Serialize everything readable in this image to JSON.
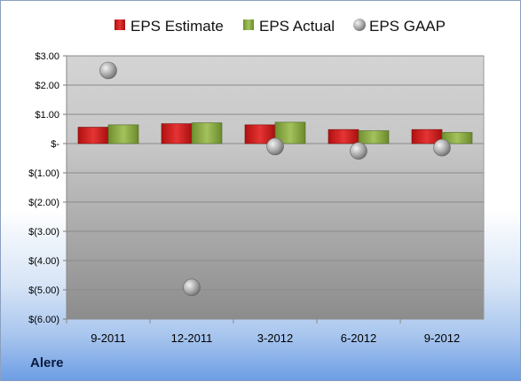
{
  "company": "Alere",
  "chart_data": {
    "type": "bar",
    "categories": [
      "9-2011",
      "12-2011",
      "3-2012",
      "6-2012",
      "9-2012"
    ],
    "series": [
      {
        "name": "EPS Estimate",
        "kind": "bar",
        "color": "#d42020",
        "values": [
          0.56,
          0.68,
          0.64,
          0.48,
          0.48
        ]
      },
      {
        "name": "EPS Actual",
        "kind": "bar",
        "color": "#8fb04a",
        "values": [
          0.64,
          0.71,
          0.73,
          0.44,
          0.38
        ]
      },
      {
        "name": "EPS GAAP",
        "kind": "scatter",
        "color": "#9a9a9a",
        "values": [
          2.5,
          -4.92,
          -0.1,
          -0.25,
          -0.14
        ]
      }
    ],
    "ylim": [
      -6,
      3
    ],
    "yticks": [
      3,
      2,
      1,
      0,
      -1,
      -2,
      -3,
      -4,
      -5,
      -6
    ],
    "ytick_labels": [
      "$3.00",
      "$2.00",
      "$1.00",
      "$-",
      "$(1.00)",
      "$(2.00)",
      "$(3.00)",
      "$(4.00)",
      "$(5.00)",
      "$(6.00)"
    ],
    "legend_position": "top",
    "grid": true,
    "plot_background": "gradient-gray"
  }
}
